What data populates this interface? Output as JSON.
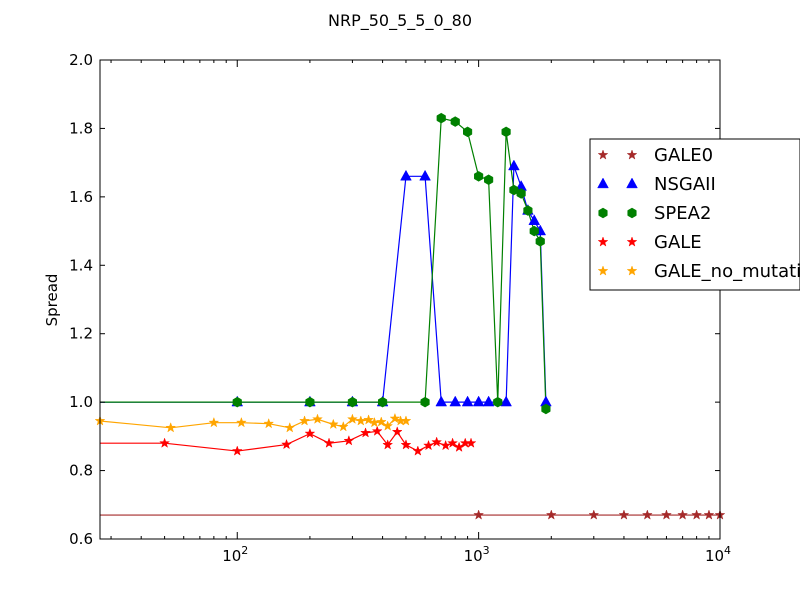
{
  "chart_data": {
    "type": "line",
    "title": "NRP_50_5_5_0_80",
    "xlabel": "",
    "ylabel": "Spread",
    "xscale": "log",
    "xlim": [
      27,
      10000
    ],
    "ylim": [
      0.6,
      2.0
    ],
    "yticks": [
      "0.6",
      "0.8",
      "1.0",
      "1.2",
      "1.4",
      "1.6",
      "1.8",
      "2.0"
    ],
    "xticks": [
      {
        "value": 100,
        "base": "10",
        "exp": "2"
      },
      {
        "value": 1000,
        "base": "10",
        "exp": "3"
      },
      {
        "value": 10000,
        "base": "10",
        "exp": "4"
      }
    ],
    "grid": false,
    "legend_position": "right",
    "series": [
      {
        "name": "GALE0",
        "color": "#a52a2a",
        "marker": "star",
        "x": [
          27,
          1000,
          2000,
          3000,
          4000,
          5000,
          6000,
          7000,
          8000,
          9000,
          10000
        ],
        "y": [
          0.67,
          0.67,
          0.67,
          0.67,
          0.67,
          0.67,
          0.67,
          0.67,
          0.67,
          0.67,
          0.67
        ],
        "marker_from": 1
      },
      {
        "name": "NSGAII",
        "color": "#0000ff",
        "marker": "triangle",
        "x": [
          27,
          100,
          200,
          300,
          400,
          500,
          600,
          700,
          800,
          900,
          1000,
          1100,
          1300,
          1400,
          1500,
          1600,
          1700,
          1800,
          1900
        ],
        "y": [
          1.0,
          1.0,
          1.0,
          1.0,
          1.0,
          1.66,
          1.66,
          1.0,
          1.0,
          1.0,
          1.0,
          1.0,
          1.0,
          1.69,
          1.63,
          1.56,
          1.53,
          1.5,
          1.0
        ],
        "marker_from": 1
      },
      {
        "name": "SPEA2",
        "color": "#008000",
        "marker": "hexagon",
        "x": [
          27,
          100,
          200,
          300,
          400,
          600,
          700,
          800,
          900,
          1000,
          1100,
          1200,
          1300,
          1400,
          1500,
          1600,
          1700,
          1800,
          1900
        ],
        "y": [
          1.0,
          1.0,
          1.0,
          1.0,
          1.0,
          1.0,
          1.83,
          1.82,
          1.79,
          1.66,
          1.65,
          1.0,
          1.79,
          1.62,
          1.61,
          1.56,
          1.5,
          1.47,
          0.98
        ],
        "marker_from": 1
      },
      {
        "name": "GALE",
        "color": "#ff0000",
        "marker": "star",
        "x": [
          27,
          50,
          100,
          160,
          200,
          240,
          290,
          340,
          380,
          420,
          460,
          500,
          560,
          620,
          670,
          730,
          780,
          830,
          880,
          930
        ],
        "y": [
          0.88,
          0.88,
          0.857,
          0.876,
          0.908,
          0.88,
          0.887,
          0.91,
          0.915,
          0.875,
          0.913,
          0.875,
          0.857,
          0.873,
          0.883,
          0.873,
          0.88,
          0.868,
          0.88,
          0.88
        ],
        "marker_from": 1
      },
      {
        "name": "GALE_no_mutation",
        "color": "#ffa500",
        "marker": "star",
        "x": [
          27,
          53,
          80,
          104,
          135,
          165,
          190,
          215,
          250,
          275,
          300,
          325,
          350,
          370,
          395,
          420,
          450,
          475,
          500
        ],
        "y": [
          0.945,
          0.925,
          0.94,
          0.94,
          0.937,
          0.925,
          0.945,
          0.95,
          0.935,
          0.928,
          0.95,
          0.945,
          0.948,
          0.94,
          0.942,
          0.93,
          0.952,
          0.945,
          0.945
        ],
        "marker_from": 0
      }
    ]
  }
}
